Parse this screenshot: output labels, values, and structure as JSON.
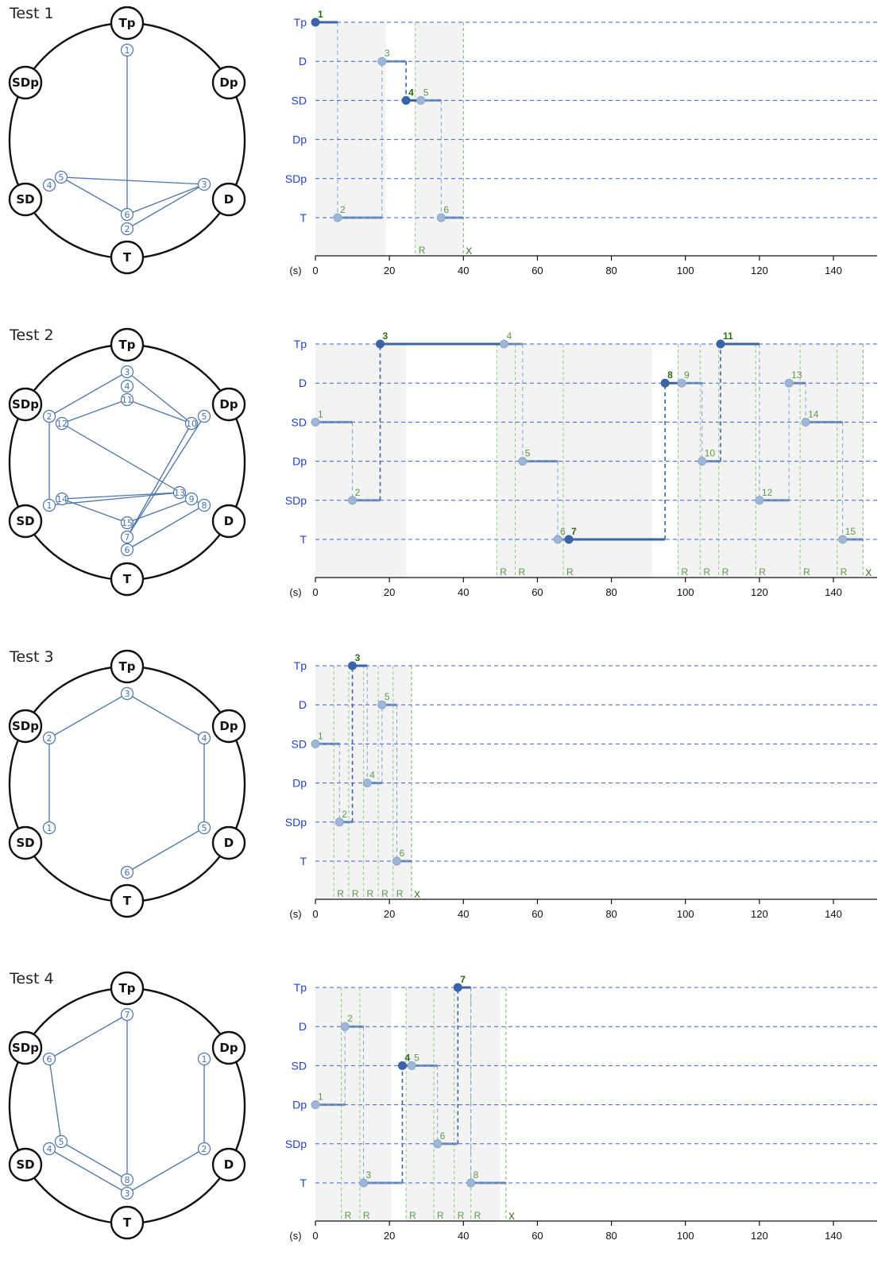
{
  "colors": {
    "event_line": "#4a74b0",
    "event_dot_light": "#9fb6d6",
    "event_dot_dark": "#3a64a8",
    "label_green": "#5a9a4a",
    "label_green_dark": "#2a6a10",
    "dashed_row": "#3a5ee8",
    "shade": "#f3f3f3"
  },
  "circle_nodes": [
    "Tp",
    "Dp",
    "D",
    "T",
    "SD",
    "SDp"
  ],
  "rows": [
    "Tp",
    "D",
    "SD",
    "Dp",
    "SDp",
    "T"
  ],
  "axis": {
    "unit_label": "(s)",
    "ticks": [
      0,
      20,
      40,
      60,
      80,
      100,
      120,
      140
    ],
    "xlim": [
      0,
      152
    ]
  },
  "marker_labels": {
    "repeat": "R",
    "end": "X"
  },
  "chart_data": [
    {
      "title": "Test 1",
      "type": "timeline",
      "events": [
        {
          "n": 1,
          "node": "Tp",
          "t": 0,
          "end": 6,
          "dark": true
        },
        {
          "n": 2,
          "node": "T",
          "t": 6,
          "end": 18,
          "dark": false
        },
        {
          "n": 3,
          "node": "D",
          "t": 18,
          "end": 24.5,
          "dark": false
        },
        {
          "n": 4,
          "node": "SD",
          "t": 24.5,
          "end": 28.5,
          "dark": true
        },
        {
          "n": 5,
          "node": "SD",
          "t": 28.5,
          "end": 34,
          "dark": false
        },
        {
          "n": 6,
          "node": "T",
          "t": 34,
          "end": 40,
          "dark": false
        }
      ],
      "repeats": [
        27
      ],
      "shaded": [
        [
          0,
          19
        ],
        [
          27,
          40
        ]
      ],
      "end_marker": 40,
      "circle_edges": [
        [
          1,
          6
        ],
        [
          6,
          5
        ],
        [
          6,
          3
        ],
        [
          2,
          3
        ],
        [
          5,
          3
        ]
      ],
      "circle_positions": {
        "1": [
          160,
          63
        ],
        "2": [
          160,
          288
        ],
        "3": [
          257,
          232
        ],
        "4": [
          62,
          233
        ],
        "5": [
          77,
          223
        ],
        "6": [
          160,
          270
        ]
      }
    },
    {
      "title": "Test 2",
      "type": "timeline",
      "events": [
        {
          "n": 1,
          "node": "SD",
          "t": 0,
          "end": 10,
          "dark": false
        },
        {
          "n": 2,
          "node": "SDp",
          "t": 10,
          "end": 17.5,
          "dark": false
        },
        {
          "n": 3,
          "node": "Tp",
          "t": 17.5,
          "end": 51,
          "dark": true
        },
        {
          "n": 4,
          "node": "Tp",
          "t": 51,
          "end": 56,
          "dark": false
        },
        {
          "n": 5,
          "node": "Dp",
          "t": 56,
          "end": 65.5,
          "dark": false
        },
        {
          "n": 6,
          "node": "T",
          "t": 65.5,
          "end": 68.5,
          "dark": false
        },
        {
          "n": 7,
          "node": "T",
          "t": 68.5,
          "end": 94.5,
          "dark": true
        },
        {
          "n": 8,
          "node": "D",
          "t": 94.5,
          "end": 99,
          "dark": true
        },
        {
          "n": 9,
          "node": "D",
          "t": 99,
          "end": 104.5,
          "dark": false
        },
        {
          "n": 10,
          "node": "Dp",
          "t": 104.5,
          "end": 109.5,
          "dark": false
        },
        {
          "n": 11,
          "node": "Tp",
          "t": 109.5,
          "end": 120,
          "dark": true
        },
        {
          "n": 12,
          "node": "SDp",
          "t": 120,
          "end": 128,
          "dark": false
        },
        {
          "n": 13,
          "node": "D",
          "t": 128,
          "end": 132.5,
          "dark": false
        },
        {
          "n": 14,
          "node": "SD",
          "t": 132.5,
          "end": 142.5,
          "dark": false
        },
        {
          "n": 15,
          "node": "T",
          "t": 142.5,
          "end": 148,
          "dark": false
        }
      ],
      "repeats": [
        49,
        54,
        67,
        98,
        104,
        109,
        119,
        131,
        141
      ],
      "shaded": [
        [
          0,
          24.5
        ],
        [
          49,
          91
        ],
        [
          98,
          148
        ]
      ],
      "end_marker": 148,
      "circle_edges": [
        [
          2,
          3
        ],
        [
          3,
          10
        ],
        [
          12,
          11
        ],
        [
          11,
          10
        ],
        [
          2,
          1
        ],
        [
          12,
          9
        ],
        [
          13,
          14
        ],
        [
          14,
          15
        ],
        [
          15,
          9
        ],
        [
          9,
          8
        ],
        [
          8,
          6
        ],
        [
          1,
          13
        ],
        [
          10,
          7
        ],
        [
          7,
          5
        ]
      ],
      "circle_positions": {
        "1": [
          62,
          636
        ],
        "2": [
          62,
          524
        ],
        "3": [
          160,
          468
        ],
        "4": [
          160,
          486
        ],
        "5": [
          257,
          524
        ],
        "6": [
          160,
          692
        ],
        "7": [
          160,
          676
        ],
        "8": [
          257,
          636
        ],
        "9": [
          241,
          628
        ],
        "10": [
          241,
          533
        ],
        "11": [
          160,
          503
        ],
        "12": [
          78,
          533
        ],
        "13": [
          226,
          620
        ],
        "14": [
          78,
          628
        ],
        "15": [
          160,
          658
        ]
      }
    },
    {
      "title": "Test 3",
      "type": "timeline",
      "events": [
        {
          "n": 1,
          "node": "SD",
          "t": 0,
          "end": 6.5,
          "dark": false
        },
        {
          "n": 2,
          "node": "SDp",
          "t": 6.5,
          "end": 10,
          "dark": false
        },
        {
          "n": 3,
          "node": "Tp",
          "t": 10,
          "end": 14,
          "dark": true
        },
        {
          "n": 4,
          "node": "Dp",
          "t": 14,
          "end": 18,
          "dark": false
        },
        {
          "n": 5,
          "node": "D",
          "t": 18,
          "end": 22,
          "dark": false
        },
        {
          "n": 6,
          "node": "T",
          "t": 22,
          "end": 26,
          "dark": false
        }
      ],
      "repeats": [
        5,
        9,
        13,
        17,
        21
      ],
      "shaded": [
        [
          0,
          26
        ]
      ],
      "end_marker": 26,
      "circle_edges": [
        [
          1,
          2
        ],
        [
          2,
          3
        ],
        [
          3,
          4
        ],
        [
          4,
          5
        ],
        [
          5,
          6
        ]
      ],
      "circle_positions": {
        "1": [
          62,
          1042
        ],
        "2": [
          62,
          929
        ],
        "3": [
          160,
          873
        ],
        "4": [
          257,
          929
        ],
        "5": [
          257,
          1042
        ],
        "6": [
          160,
          1098
        ]
      }
    },
    {
      "title": "Test 4",
      "type": "timeline",
      "events": [
        {
          "n": 1,
          "node": "Dp",
          "t": 0,
          "end": 8,
          "dark": false
        },
        {
          "n": 2,
          "node": "D",
          "t": 8,
          "end": 13,
          "dark": false
        },
        {
          "n": 3,
          "node": "T",
          "t": 13,
          "end": 23.5,
          "dark": false
        },
        {
          "n": 4,
          "node": "SD",
          "t": 23.5,
          "end": 26,
          "dark": true
        },
        {
          "n": 5,
          "node": "SD",
          "t": 26,
          "end": 33,
          "dark": false
        },
        {
          "n": 6,
          "node": "SDp",
          "t": 33,
          "end": 38.5,
          "dark": false
        },
        {
          "n": 7,
          "node": "Tp",
          "t": 38.5,
          "end": 42,
          "dark": true
        },
        {
          "n": 8,
          "node": "T",
          "t": 42,
          "end": 51.5,
          "dark": false
        }
      ],
      "repeats": [
        7,
        12,
        24.5,
        32,
        37.5,
        42
      ],
      "shaded": [
        [
          0,
          20.5
        ],
        [
          24.5,
          50
        ]
      ],
      "end_marker": 51.5,
      "circle_edges": [
        [
          1,
          2
        ],
        [
          2,
          3
        ],
        [
          3,
          4
        ],
        [
          5,
          8
        ],
        [
          8,
          7
        ],
        [
          7,
          6
        ],
        [
          6,
          5
        ]
      ],
      "circle_positions": {
        "1": [
          257,
          1333
        ],
        "2": [
          257,
          1446
        ],
        "3": [
          160,
          1502
        ],
        "4": [
          62,
          1446
        ],
        "5": [
          77,
          1437
        ],
        "6": [
          62,
          1333
        ],
        "7": [
          160,
          1277
        ],
        "8": [
          160,
          1485
        ]
      }
    }
  ]
}
